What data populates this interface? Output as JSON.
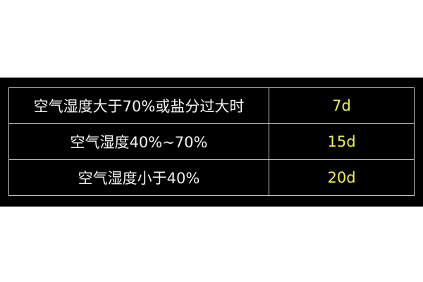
{
  "table": {
    "rows": [
      {
        "condition": "空气湿度大于70%或盐分过大时",
        "duration": "7d"
      },
      {
        "condition": "空气湿度40%~70%",
        "duration": "15d"
      },
      {
        "condition": "空气湿度小于40%",
        "duration": "20d"
      }
    ]
  },
  "colors": {
    "background": "#000000",
    "text": "#f2f2f2",
    "value_text": "#f0f050",
    "grid": "#d0d0d0"
  }
}
